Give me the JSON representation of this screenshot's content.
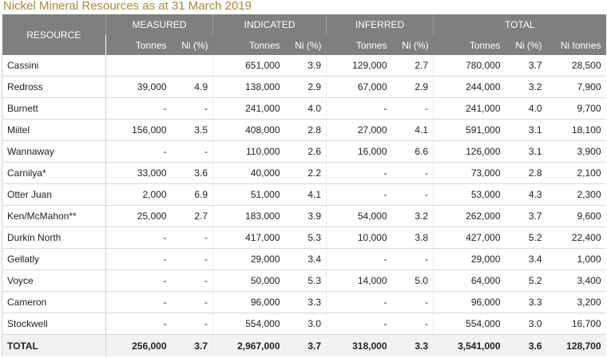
{
  "title": "Nickel Mineral Resources as at 31 March 2019",
  "header": {
    "resource": "RESOURCE",
    "groups": [
      "MEASURED",
      "INDICATED",
      "INFERRED",
      "TOTAL"
    ],
    "sub": [
      "Tonnes",
      "Ni (%)",
      "Tonnes",
      "Ni (%)",
      "Tonnes",
      "Ni (%)",
      "Tonnes",
      "Ni (%)",
      "Ni tonnes"
    ]
  },
  "rows": [
    [
      "Cassini",
      "",
      "",
      "651,000",
      "3.9",
      "129,000",
      "2.7",
      "780,000",
      "3.7",
      "28,500"
    ],
    [
      "Redross",
      "39,000",
      "4.9",
      "138,000",
      "2.9",
      "67,000",
      "2.9",
      "244,000",
      "3.2",
      "7,900"
    ],
    [
      "Burnett",
      "-",
      "-",
      "241,000",
      "4.0",
      "-",
      "-",
      "241,000",
      "4.0",
      "9,700"
    ],
    [
      "Miitel",
      "156,000",
      "3.5",
      "408,000",
      "2.8",
      "27,000",
      "4.1",
      "591,000",
      "3.1",
      "18,100"
    ],
    [
      "Wannaway",
      "-",
      "-",
      "110,000",
      "2.6",
      "16,000",
      "6.6",
      "126,000",
      "3.1",
      "3,900"
    ],
    [
      "Carnilya*",
      "33,000",
      "3.6",
      "40,000",
      "2.2",
      "-",
      "-",
      "73,000",
      "2.8",
      "2,100"
    ],
    [
      "Otter Juan",
      "2,000",
      "6.9",
      "51,000",
      "4.1",
      "-",
      "-",
      "53,000",
      "4.3",
      "2,300"
    ],
    [
      "Ken/McMahon**",
      "25,000",
      "2.7",
      "183,000",
      "3.9",
      "54,000",
      "3.2",
      "262,000",
      "3.7",
      "9,600"
    ],
    [
      "Durkin North",
      "-",
      "-",
      "417,000",
      "5.3",
      "10,000",
      "3.8",
      "427,000",
      "5.2",
      "22,400"
    ],
    [
      "Gellatly",
      "-",
      "-",
      "29,000",
      "3.4",
      "-",
      "-",
      "29,000",
      "3.4",
      "1,000"
    ],
    [
      "Voyce",
      "-",
      "-",
      "50,000",
      "5.3",
      "14,000",
      "5.0",
      "64,000",
      "5.2",
      "3,400"
    ],
    [
      "Cameron",
      "-",
      "-",
      "96,000",
      "3.3",
      "-",
      "-",
      "96,000",
      "3.3",
      "3,200"
    ],
    [
      "Stockwell",
      "-",
      "-",
      "554,000",
      "3.0",
      "-",
      "-",
      "554,000",
      "3.0",
      "16,700"
    ]
  ],
  "total": [
    "TOTAL",
    "256,000",
    "3.7",
    "2,967,000",
    "3.7",
    "318,000",
    "3.3",
    "3,541,000",
    "3.6",
    "128,700"
  ]
}
